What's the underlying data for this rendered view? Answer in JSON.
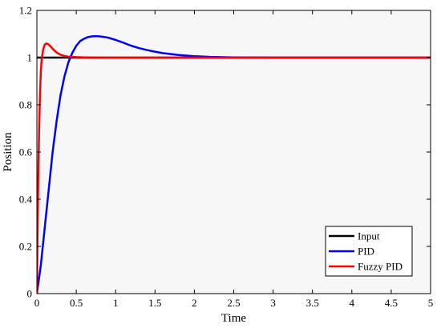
{
  "chart_data": {
    "type": "line",
    "title": "",
    "xlabel": "Time",
    "ylabel": "Position",
    "xlim": [
      0,
      5
    ],
    "ylim": [
      0,
      1.2
    ],
    "xticks": [
      0,
      0.5,
      1,
      1.5,
      2,
      2.5,
      3,
      3.5,
      4,
      4.5,
      5
    ],
    "xtick_labels": [
      "0",
      "0.5",
      "1",
      "1.5",
      "2",
      "2.5",
      "3",
      "3.5",
      "4",
      "4.5",
      "5"
    ],
    "yticks": [
      0,
      0.2,
      0.4,
      0.6,
      0.8,
      1,
      1.2
    ],
    "ytick_labels": [
      "0",
      "0.2",
      "0.4",
      "0.6",
      "0.8",
      "1",
      "1.2"
    ],
    "grid": false,
    "legend_position": "bottom-right",
    "plot_background": "#f7f7f7",
    "series": [
      {
        "name": "Input",
        "color": "#000000",
        "x": [
          0,
          5
        ],
        "y": [
          1,
          1
        ]
      },
      {
        "name": "PID",
        "color": "#0000ff",
        "x": [
          0,
          0.05,
          0.1,
          0.15,
          0.2,
          0.25,
          0.3,
          0.35,
          0.4,
          0.45,
          0.5,
          0.55,
          0.6,
          0.65,
          0.7,
          0.75,
          0.8,
          0.9,
          1.0,
          1.1,
          1.2,
          1.3,
          1.4,
          1.5,
          1.6,
          1.8,
          2.0,
          2.2,
          2.5,
          3.0,
          3.5,
          4.0,
          4.5,
          5.0
        ],
        "y": [
          0,
          0.12,
          0.28,
          0.44,
          0.6,
          0.73,
          0.84,
          0.92,
          0.98,
          1.02,
          1.05,
          1.07,
          1.08,
          1.087,
          1.09,
          1.091,
          1.09,
          1.085,
          1.075,
          1.063,
          1.05,
          1.04,
          1.032,
          1.025,
          1.019,
          1.011,
          1.006,
          1.003,
          1.001,
          1.0,
          1.0,
          1.0,
          1.0,
          1.0
        ]
      },
      {
        "name": "Fuzzy PID",
        "color": "#ff0000",
        "x": [
          0,
          0.01,
          0.02,
          0.03,
          0.04,
          0.05,
          0.06,
          0.08,
          0.1,
          0.12,
          0.14,
          0.16,
          0.18,
          0.2,
          0.25,
          0.3,
          0.35,
          0.4,
          0.5,
          0.6,
          0.8,
          1.0,
          1.5,
          2.0,
          3.0,
          4.0,
          5.0
        ],
        "y": [
          0,
          0.3,
          0.55,
          0.72,
          0.85,
          0.94,
          0.99,
          1.035,
          1.055,
          1.06,
          1.058,
          1.052,
          1.045,
          1.037,
          1.022,
          1.012,
          1.007,
          1.004,
          1.002,
          1.001,
          1.0,
          1.0,
          1.0,
          1.0,
          1.0,
          1.0,
          1.0
        ]
      }
    ]
  }
}
